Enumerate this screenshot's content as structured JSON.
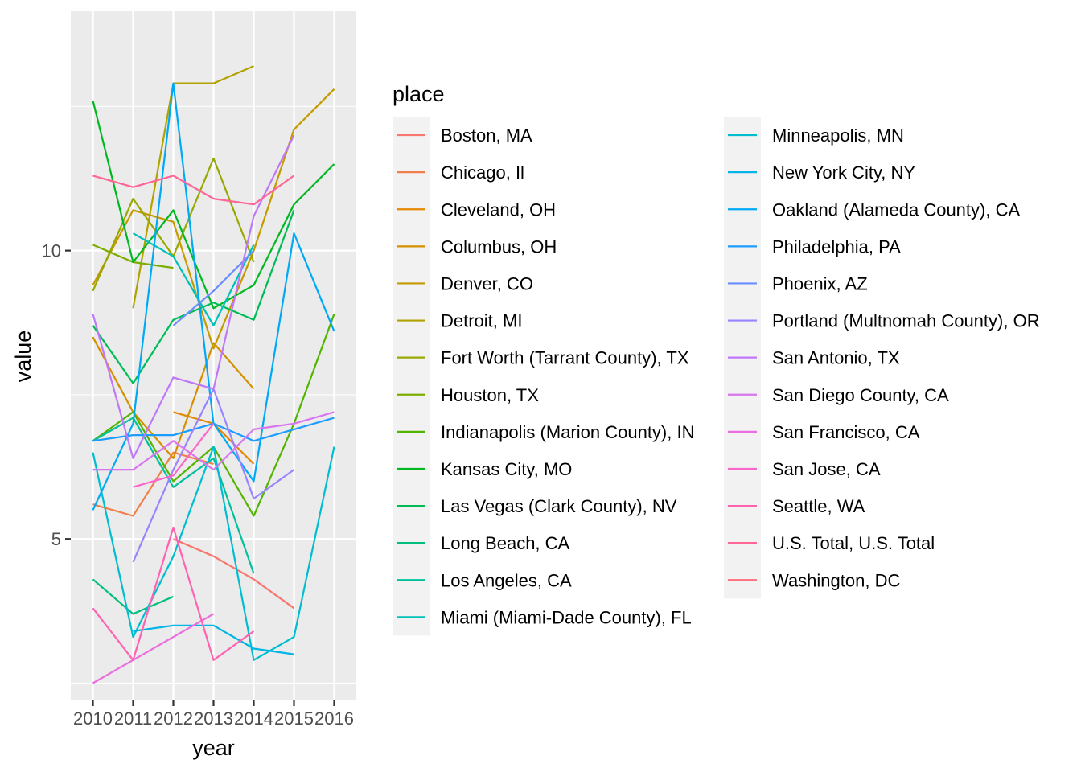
{
  "chart_data": {
    "type": "line",
    "xlabel": "year",
    "ylabel": "value",
    "legend_title": "place",
    "legend_position": "right",
    "grid": true,
    "background": "#ebebeb",
    "xlim": [
      2009.45,
      2016.55
    ],
    "ylim": [
      2.2,
      14.15
    ],
    "x": [
      2010,
      2011,
      2012,
      2013,
      2014,
      2015,
      2016
    ],
    "x_tick_labels": [
      "2010",
      "2011",
      "2012",
      "2013",
      "2014",
      "2015",
      "2016"
    ],
    "y_ticks": [
      5,
      10
    ],
    "y_tick_labels": [
      "5",
      "10"
    ],
    "series": [
      {
        "name": "Boston, MA",
        "color": "#F8766D",
        "values": [
          null,
          null,
          5.0,
          4.7,
          4.3,
          3.8,
          null
        ]
      },
      {
        "name": "Chicago, Il",
        "color": "#F07F4A",
        "values": [
          5.6,
          5.4,
          6.5,
          6.3,
          null,
          null,
          null
        ]
      },
      {
        "name": "Cleveland, OH",
        "color": "#E58700",
        "values": [
          null,
          null,
          7.2,
          7.0,
          6.3,
          null,
          null
        ]
      },
      {
        "name": "Columbus, OH",
        "color": "#D59000",
        "values": [
          8.5,
          7.2,
          6.4,
          8.4,
          7.6,
          null,
          null
        ]
      },
      {
        "name": "Denver, CO",
        "color": "#C49A00",
        "values": [
          9.4,
          10.7,
          10.5,
          8.3,
          10.0,
          12.1,
          12.8
        ]
      },
      {
        "name": "Detroit, MI",
        "color": "#B0A200",
        "values": [
          null,
          9.0,
          12.9,
          12.9,
          13.2,
          null,
          null
        ]
      },
      {
        "name": "Fort Worth (Tarrant County), TX",
        "color": "#99A800",
        "values": [
          9.3,
          10.9,
          9.9,
          11.6,
          9.8,
          null,
          null
        ]
      },
      {
        "name": "Houston, TX",
        "color": "#7CAE00",
        "values": [
          10.1,
          9.8,
          9.7,
          null,
          null,
          null,
          null
        ]
      },
      {
        "name": "Indianapolis (Marion County), IN",
        "color": "#53B400",
        "values": [
          6.7,
          7.2,
          6.0,
          6.6,
          5.4,
          7.0,
          8.9
        ]
      },
      {
        "name": "Kansas City, MO",
        "color": "#00B81F",
        "values": [
          12.6,
          9.8,
          10.7,
          9.0,
          9.4,
          10.8,
          11.5
        ]
      },
      {
        "name": "Las Vegas (Clark County), NV",
        "color": "#00BC56",
        "values": [
          8.7,
          7.7,
          8.8,
          9.1,
          8.8,
          10.7,
          null
        ]
      },
      {
        "name": "Long Beach, CA",
        "color": "#00BF7D",
        "values": [
          4.3,
          3.7,
          4.0,
          null,
          null,
          null,
          null
        ]
      },
      {
        "name": "Los Angeles, CA",
        "color": "#00C19C",
        "values": [
          6.7,
          7.1,
          5.9,
          6.4,
          4.4,
          null,
          null
        ]
      },
      {
        "name": "Miami (Miami-Dade County), FL",
        "color": "#00C1B8",
        "values": [
          null,
          10.3,
          9.9,
          8.7,
          10.1,
          null,
          null
        ]
      },
      {
        "name": "Minneapolis, MN",
        "color": "#00BDD0",
        "values": [
          6.5,
          3.3,
          4.7,
          6.6,
          2.9,
          3.3,
          6.6
        ]
      },
      {
        "name": "New York City, NY",
        "color": "#00B5E5",
        "values": [
          null,
          3.4,
          3.5,
          3.5,
          3.1,
          3.0,
          null
        ]
      },
      {
        "name": "Oakland (Alameda County), CA",
        "color": "#00A9F6",
        "values": [
          5.5,
          7.0,
          12.9,
          7.0,
          6.0,
          10.3,
          8.6
        ]
      },
      {
        "name": "Philadelphia, PA",
        "color": "#1D9CFF",
        "values": [
          6.7,
          6.8,
          6.8,
          7.0,
          6.7,
          6.9,
          7.1
        ]
      },
      {
        "name": "Phoenix, AZ",
        "color": "#6A8EFF",
        "values": [
          null,
          null,
          8.7,
          9.3,
          10.0,
          null,
          null
        ]
      },
      {
        "name": "Portland (Multnomah County), OR",
        "color": "#9A83FF",
        "values": [
          null,
          4.6,
          6.2,
          7.6,
          5.7,
          6.2,
          null
        ]
      },
      {
        "name": "San Antonio, TX",
        "color": "#BE78F9",
        "values": [
          8.9,
          6.4,
          7.8,
          7.6,
          10.6,
          12.0,
          null
        ]
      },
      {
        "name": "San Diego County, CA",
        "color": "#D975EE",
        "values": [
          6.2,
          6.2,
          6.7,
          6.2,
          6.9,
          7.0,
          7.2
        ]
      },
      {
        "name": "San Francisco, CA",
        "color": "#EB6DDF",
        "values": [
          2.5,
          2.9,
          3.3,
          3.7,
          null,
          null,
          null
        ]
      },
      {
        "name": "San Jose, CA",
        "color": "#F867C9",
        "values": [
          null,
          5.9,
          6.1,
          7.0,
          null,
          null,
          null
        ]
      },
      {
        "name": "Seattle, WA",
        "color": "#FF62B1",
        "values": [
          3.8,
          2.9,
          5.2,
          2.9,
          3.4,
          null,
          null
        ]
      },
      {
        "name": "U.S. Total, U.S. Total",
        "color": "#FF6595",
        "values": [
          11.3,
          11.1,
          11.3,
          10.9,
          10.8,
          11.3,
          null
        ]
      },
      {
        "name": "Washington, DC",
        "color": "#FF6C7B",
        "values": [
          null,
          null,
          null,
          null,
          null,
          null,
          null
        ]
      }
    ]
  }
}
